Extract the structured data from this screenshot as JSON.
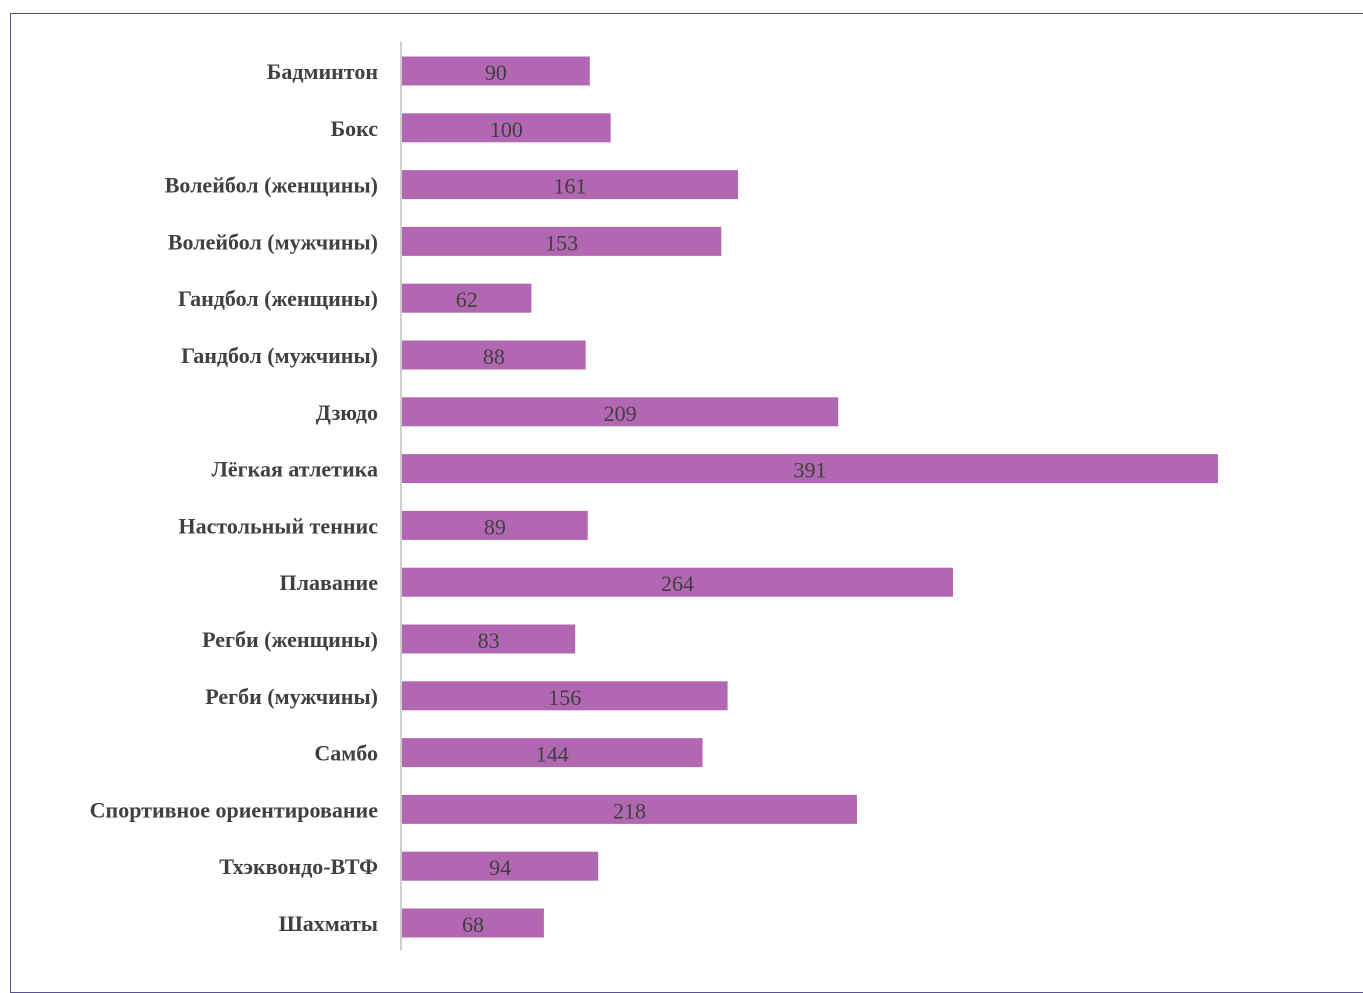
{
  "chart_data": {
    "type": "bar",
    "orientation": "horizontal",
    "categories": [
      "Бадминтон",
      "Бокс",
      "Волейбол (женщины)",
      "Волейбол (мужчины)",
      "Гандбол (женщины)",
      "Гандбол (мужчины)",
      "Дзюдо",
      "Лёгкая атлетика",
      "Настольный теннис",
      "Плавание",
      "Регби (женщины)",
      "Регби (мужчины)",
      "Самбо",
      "Спортивное ориентирование",
      "Тхэквондо-ВТФ",
      "Шахматы"
    ],
    "values": [
      90,
      100,
      161,
      153,
      62,
      88,
      209,
      391,
      89,
      264,
      83,
      156,
      144,
      218,
      94,
      68
    ],
    "title": "",
    "xlabel": "",
    "ylabel": "",
    "xlim": [
      0,
      391
    ],
    "grid": false,
    "legend": "none",
    "bar_color": "#b267b2",
    "axis_color": "#bfbfbf",
    "border_color": "#5b4f8c",
    "text_color": "#404040"
  }
}
